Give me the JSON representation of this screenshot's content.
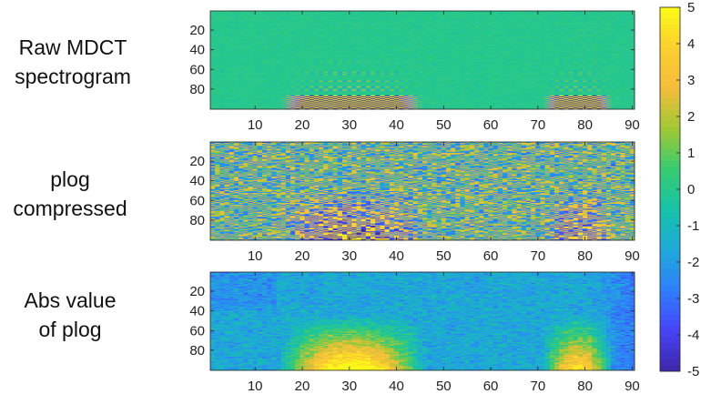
{
  "figure": {
    "row_labels": [
      [
        "Raw MDCT",
        "spectrogram"
      ],
      [
        "plog",
        "compressed"
      ],
      [
        "Abs value",
        "of plog"
      ]
    ]
  },
  "chart_data": [
    {
      "type": "heatmap",
      "title": "",
      "row_label": "Raw MDCT spectrogram",
      "xlim": [
        1,
        90
      ],
      "ylim": [
        1,
        100
      ],
      "y_reversed": true,
      "xticks": [
        10,
        20,
        30,
        40,
        50,
        60,
        70,
        80,
        90
      ],
      "yticks": [
        20,
        40,
        60,
        80
      ],
      "clim": [
        -5,
        5
      ],
      "colormap": "parula",
      "pattern": "mostly near 0 (teal); alternating +/-5 energy in bottom rows (~85-100) at frames 15-45 and 72-85 with faint upward harmonics"
    },
    {
      "type": "heatmap",
      "title": "",
      "row_label": "plog compressed",
      "xlim": [
        1,
        90
      ],
      "ylim": [
        1,
        100
      ],
      "y_reversed": true,
      "xticks": [
        10,
        20,
        30,
        40,
        50,
        60,
        70,
        80,
        90
      ],
      "yticks": [
        20,
        40,
        60,
        80
      ],
      "clim": [
        -5,
        5
      ],
      "colormap": "parula",
      "pattern": "checkerboard of high-magnitude positive/negative values across the full frame"
    },
    {
      "type": "heatmap",
      "title": "",
      "row_label": "Abs value of plog",
      "xlim": [
        1,
        90
      ],
      "ylim": [
        1,
        100
      ],
      "y_reversed": true,
      "xticks": [
        10,
        20,
        30,
        40,
        50,
        60,
        70,
        80,
        90
      ],
      "yticks": [
        20,
        40,
        60,
        80
      ],
      "clim": [
        -5,
        5
      ],
      "colormap": "parula",
      "pattern": "mostly -1 to 1 (cyan/blue); yellow/orange energy at rows 70-100 for frames 15-45 and 72-85; darker blue at high frames 82-90"
    }
  ],
  "colorbar": {
    "ticks": [
      5,
      4,
      3,
      2,
      1,
      0,
      -1,
      -2,
      -3,
      -4,
      -5
    ],
    "range": [
      -5,
      5
    ],
    "colors": [
      "#3e26a8",
      "#4743f8",
      "#2f7ffd",
      "#1ea9d9",
      "#16c2a8",
      "#38cc71",
      "#a1c834",
      "#f4bd3b",
      "#fccf2f",
      "#f9fb15"
    ]
  }
}
